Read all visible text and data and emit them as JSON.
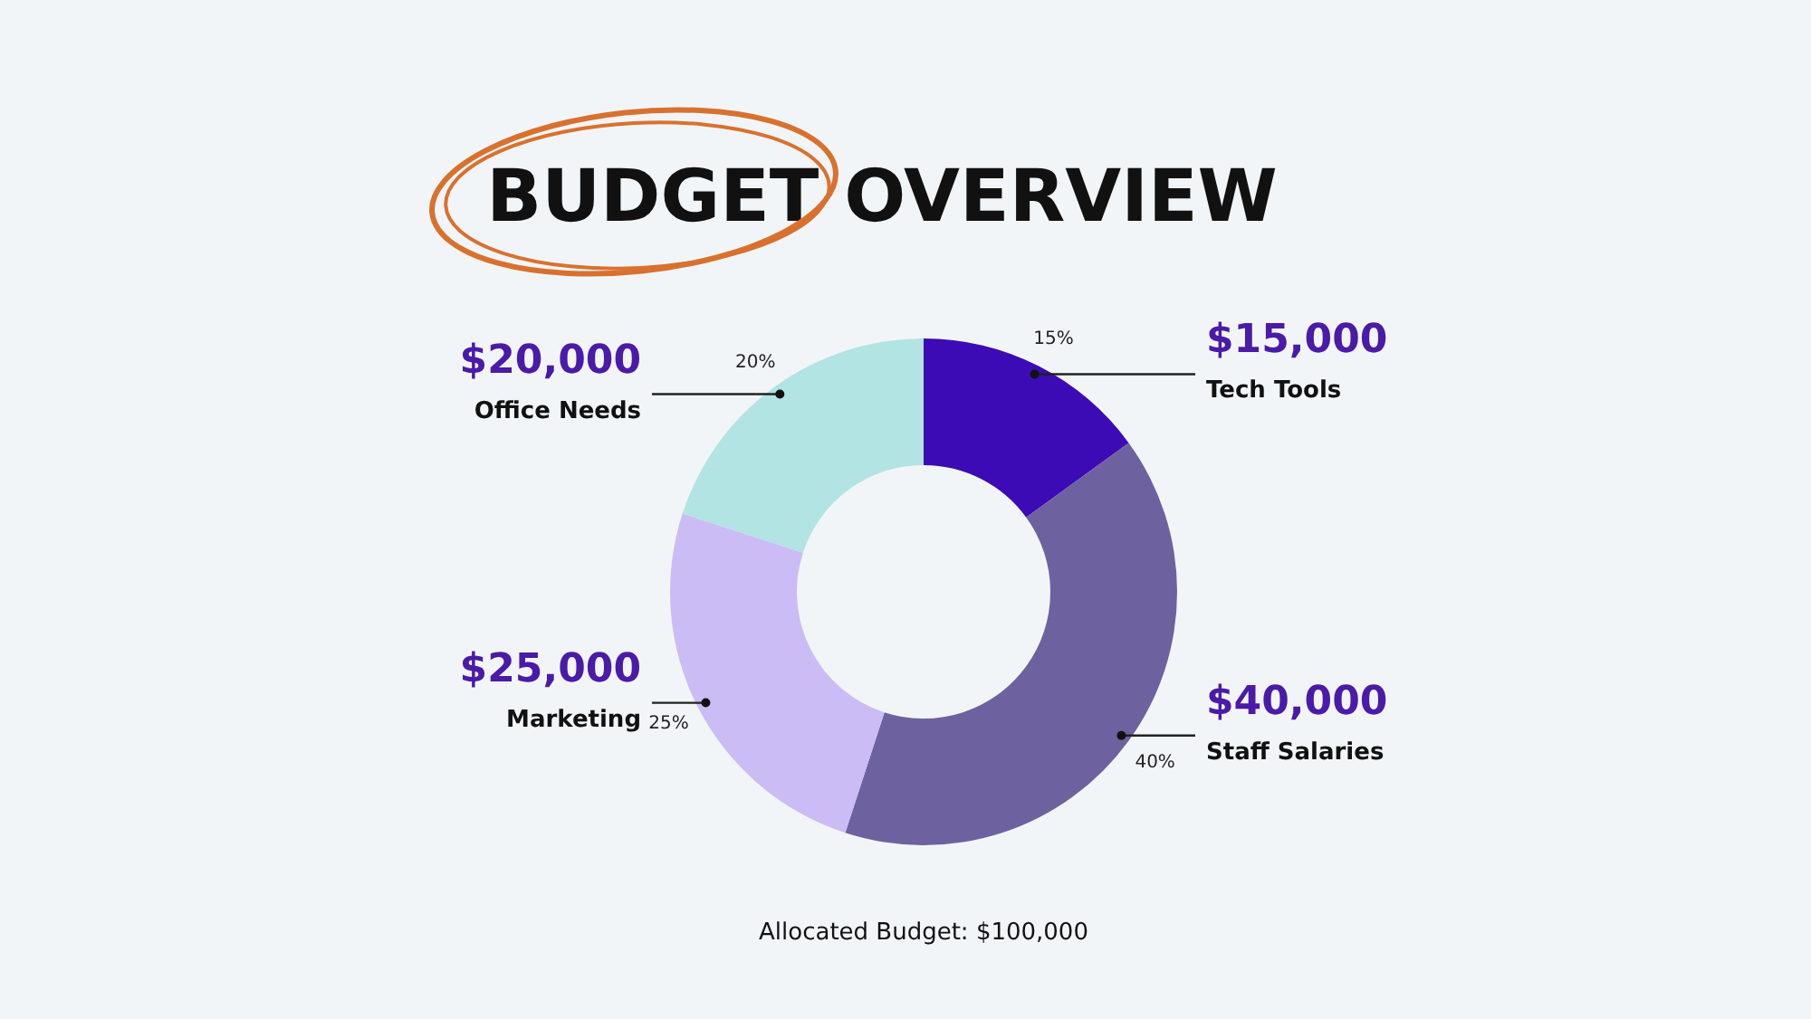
{
  "chart_data": {
    "type": "donut",
    "title": "BUDGET OVERVIEW",
    "categories": [
      "Tech Tools",
      "Staff Salaries",
      "Marketing",
      "Office Needs"
    ],
    "values": [
      15000,
      40000,
      25000,
      20000
    ],
    "colors": [
      "#3c0bb5",
      "#6e619f",
      "#cbbcf6",
      "#b1e4e3"
    ],
    "value_labels": [
      "$15,000",
      "$40,000",
      "$25,000",
      "$20,000"
    ],
    "annotations": [
      {
        "text": "15%",
        "x": "Tech Tools"
      },
      {
        "text": "40%",
        "x": "Staff Salaries"
      },
      {
        "text": "25%",
        "x": "Marketing"
      },
      {
        "text": "20%",
        "x": "Office Needs"
      },
      "Allocated Budget: $100,000"
    ]
  }
}
